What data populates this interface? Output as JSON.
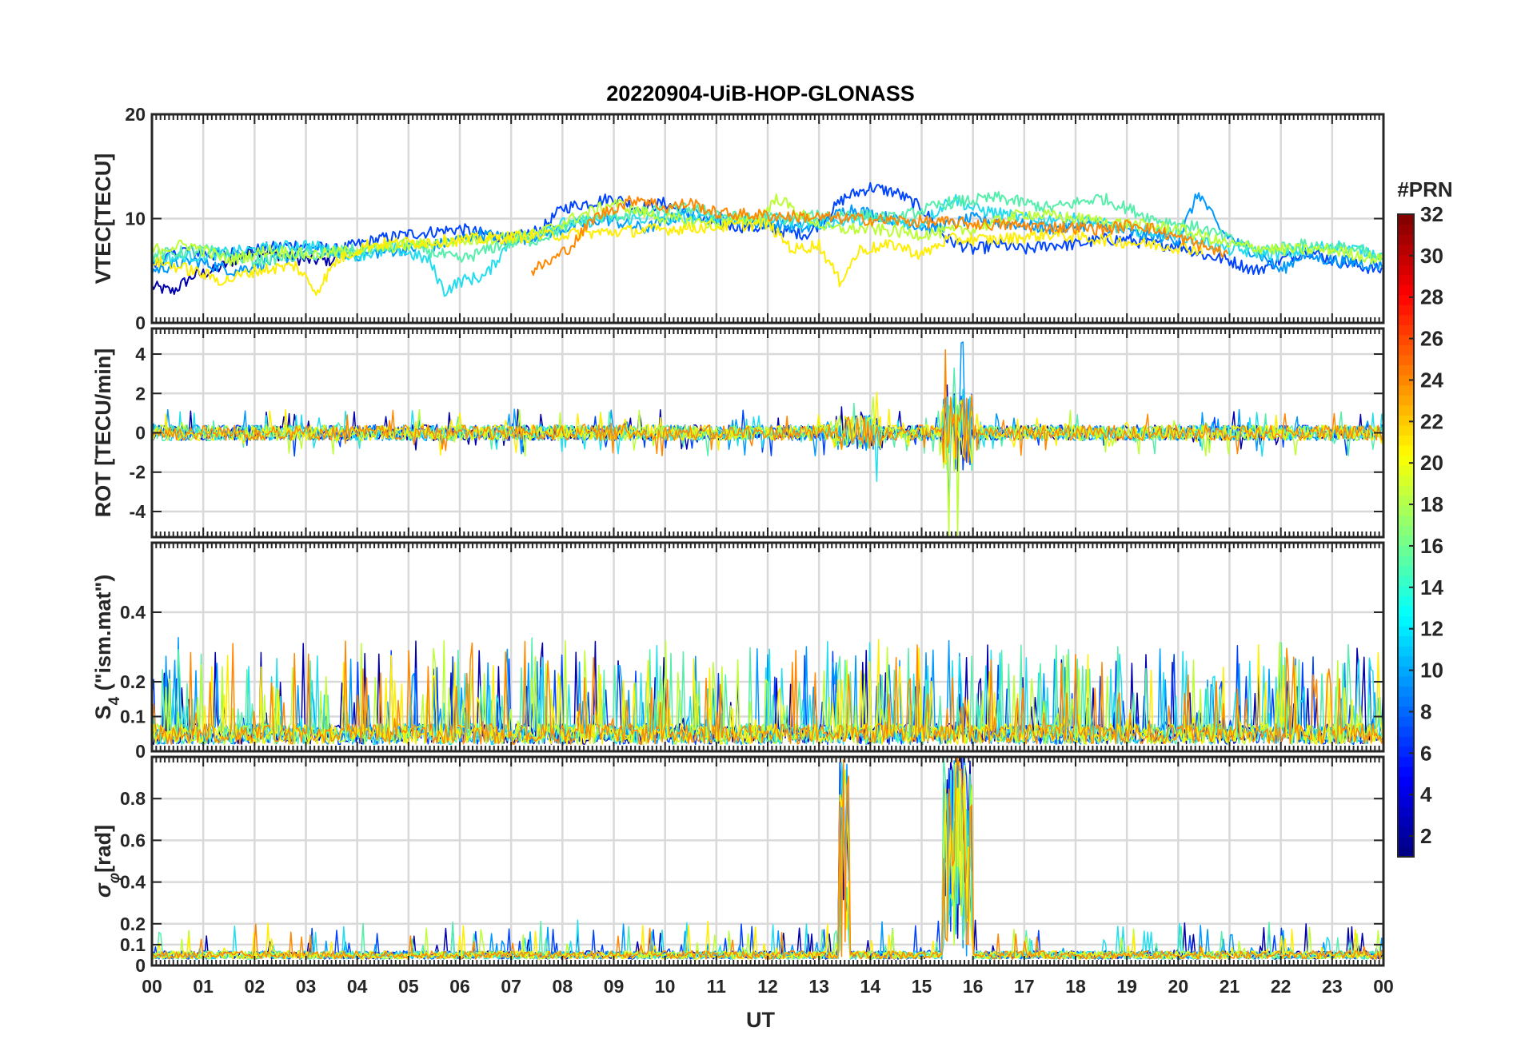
{
  "chart_data": {
    "type": "line",
    "title": "20220904-UiB-HOP-GLONASS",
    "x_axis": {
      "label": "UT",
      "range": [
        0,
        24
      ],
      "tick_labels": [
        "00",
        "01",
        "02",
        "03",
        "04",
        "05",
        "06",
        "07",
        "08",
        "09",
        "10",
        "11",
        "12",
        "13",
        "14",
        "15",
        "16",
        "17",
        "18",
        "19",
        "20",
        "21",
        "22",
        "23",
        "00"
      ]
    },
    "grid": true,
    "colorbar": {
      "title": "#PRN",
      "range": [
        1,
        32
      ],
      "ticks": [
        2,
        4,
        6,
        8,
        10,
        12,
        14,
        16,
        18,
        20,
        22,
        24,
        26,
        28,
        30,
        32
      ],
      "colormap": "jet",
      "placement": "right"
    },
    "panels": [
      {
        "id": "vtec",
        "ylabel": "VTEC[TECU]",
        "ylim": [
          0,
          20
        ],
        "ticks": [
          0,
          10,
          20
        ],
        "series": [
          {
            "prn": 3,
            "color": "#0000b0",
            "values": [
              [
                0,
                3.5
              ],
              [
                0.4,
                3
              ],
              [
                0.8,
                4.5
              ],
              [
                1.2,
                5
              ],
              [
                1.6,
                6
              ],
              [
                2,
                7
              ],
              [
                2.5,
                6.5
              ],
              [
                3,
                6
              ],
              [
                3.6,
                6
              ]
            ]
          },
          {
            "prn": 5,
            "color": "#0044ff",
            "values": [
              [
                0,
                5.5
              ],
              [
                0.6,
                7
              ],
              [
                1.2,
                6.5
              ],
              [
                2,
                7
              ],
              [
                2.8,
                7.5
              ],
              [
                3.6,
                7
              ],
              [
                4.4,
                8
              ],
              [
                5,
                8.5
              ],
              [
                6,
                9
              ],
              [
                7,
                8
              ],
              [
                7.6,
                9
              ],
              [
                8,
                11
              ],
              [
                8.5,
                11.5
              ],
              [
                9,
                12
              ],
              [
                9.5,
                11
              ],
              [
                10,
                11.5
              ],
              [
                10.6,
                10
              ],
              [
                11,
                9.5
              ],
              [
                12,
                9
              ],
              [
                12.8,
                8.5
              ],
              [
                13.5,
                12
              ],
              [
                14,
                13
              ],
              [
                14.5,
                12.5
              ],
              [
                15,
                11
              ],
              [
                15.5,
                8
              ],
              [
                16,
                7
              ],
              [
                16.5,
                7.5
              ],
              [
                17,
                7
              ],
              [
                17.5,
                7.5
              ],
              [
                18,
                7.5
              ],
              [
                18.5,
                8
              ],
              [
                19,
                8
              ],
              [
                19.5,
                7.5
              ],
              [
                20,
                7.5
              ],
              [
                20.5,
                6.5
              ],
              [
                21,
                6
              ],
              [
                21.5,
                5
              ],
              [
                22,
                6
              ],
              [
                22.5,
                7
              ],
              [
                23,
                6
              ],
              [
                24,
                5
              ]
            ]
          },
          {
            "prn": 9,
            "color": "#0099ff",
            "values": [
              [
                0,
                5
              ],
              [
                0.8,
                6
              ],
              [
                1.6,
                5
              ],
              [
                2.4,
                6
              ],
              [
                3.2,
                7
              ],
              [
                4,
                6.5
              ],
              [
                4.8,
                7
              ],
              [
                5.6,
                7.5
              ],
              [
                6.4,
                8.5
              ],
              [
                7.2,
                8
              ],
              [
                8,
                9
              ],
              [
                8.8,
                10
              ],
              [
                9.6,
                9
              ],
              [
                10.4,
                10.5
              ],
              [
                11.2,
                10
              ],
              [
                12,
                9.5
              ],
              [
                12.8,
                9
              ],
              [
                13.6,
                11
              ],
              [
                14.4,
                10
              ],
              [
                15.2,
                9
              ],
              [
                16,
                10
              ],
              [
                16.8,
                9.5
              ],
              [
                17.6,
                9
              ],
              [
                18.4,
                9.5
              ],
              [
                19.2,
                8.5
              ],
              [
                20,
                8
              ],
              [
                20.4,
                12.5
              ],
              [
                20.8,
                9
              ],
              [
                21.2,
                7.5
              ],
              [
                21.6,
                6.5
              ],
              [
                22,
                5
              ],
              [
                22.4,
                6.5
              ],
              [
                23,
                6
              ],
              [
                24,
                5.5
              ]
            ]
          },
          {
            "prn": 12,
            "color": "#22ddee",
            "values": [
              [
                0,
                6
              ],
              [
                1,
                6.5
              ],
              [
                2,
                7
              ],
              [
                3,
                7.5
              ],
              [
                4,
                6.5
              ],
              [
                4.8,
                7
              ],
              [
                5.4,
                6
              ],
              [
                5.7,
                3
              ],
              [
                6,
                4
              ],
              [
                6.5,
                4.5
              ],
              [
                7,
                8
              ],
              [
                8,
                9.5
              ],
              [
                9,
                10
              ],
              [
                10,
                10
              ],
              [
                11,
                10
              ],
              [
                12,
                10
              ],
              [
                13,
                9.5
              ],
              [
                14,
                10
              ],
              [
                15,
                9.5
              ],
              [
                15.6,
                12
              ],
              [
                16,
                11
              ],
              [
                17,
                10
              ],
              [
                18,
                10
              ],
              [
                19,
                9
              ],
              [
                20,
                8.5
              ],
              [
                21,
                7
              ],
              [
                22,
                6.5
              ],
              [
                23,
                7.5
              ],
              [
                24,
                6.5
              ]
            ]
          },
          {
            "prn": 15,
            "color": "#55eeaa",
            "values": [
              [
                0,
                6.5
              ],
              [
                1,
                7
              ],
              [
                2,
                6
              ],
              [
                3,
                6.5
              ],
              [
                4,
                7
              ],
              [
                5,
                7.5
              ],
              [
                6,
                6
              ],
              [
                6.8,
                7.5
              ],
              [
                7.5,
                8
              ],
              [
                8.5,
                10
              ],
              [
                9.5,
                10.5
              ],
              [
                10.5,
                11
              ],
              [
                11.5,
                10
              ],
              [
                12.5,
                10
              ],
              [
                13.5,
                10.5
              ],
              [
                14.5,
                10
              ],
              [
                15.5,
                11.5
              ],
              [
                16.5,
                12
              ],
              [
                17.5,
                11
              ],
              [
                18.5,
                12
              ],
              [
                19.5,
                10
              ],
              [
                20.5,
                9
              ],
              [
                21.5,
                7
              ],
              [
                22.5,
                7.5
              ],
              [
                23.5,
                7
              ],
              [
                24,
                6
              ]
            ]
          },
          {
            "prn": 18,
            "color": "#bbff33",
            "values": [
              [
                0,
                7
              ],
              [
                0.7,
                7.5
              ],
              [
                1.5,
                6
              ],
              [
                2.3,
                7
              ],
              [
                3.1,
                6.5
              ],
              [
                4,
                7
              ],
              [
                7.5,
                8.5
              ],
              [
                8.2,
                10
              ],
              [
                9,
                11.5
              ],
              [
                10,
                10
              ],
              [
                11,
                9.5
              ],
              [
                11.8,
                10
              ],
              [
                12.2,
                12
              ],
              [
                12.6,
                10.5
              ],
              [
                13.2,
                9
              ],
              [
                14,
                9
              ],
              [
                15,
                8.5
              ],
              [
                16,
                9
              ],
              [
                17,
                10.5
              ],
              [
                18,
                10
              ],
              [
                19,
                9.5
              ],
              [
                20,
                9
              ],
              [
                21,
                7.5
              ],
              [
                22,
                7
              ],
              [
                23,
                7
              ],
              [
                24,
                6
              ]
            ]
          },
          {
            "prn": 20,
            "color": "#ffee00",
            "values": [
              [
                0,
                6
              ],
              [
                0.8,
                5
              ],
              [
                1.4,
                4
              ],
              [
                2,
                5
              ],
              [
                2.8,
                5.5
              ],
              [
                3.2,
                3
              ],
              [
                3.6,
                6
              ],
              [
                4.2,
                7.5
              ],
              [
                12,
                9.5
              ],
              [
                12.5,
                7
              ],
              [
                13,
                7.5
              ],
              [
                13.4,
                4
              ],
              [
                13.8,
                7
              ],
              [
                14.5,
                7.5
              ],
              [
                15,
                6.5
              ],
              [
                15.5,
                8
              ],
              [
                16.5,
                8
              ],
              [
                17.5,
                8.5
              ],
              [
                18.5,
                8
              ],
              [
                19.5,
                7.5
              ],
              [
                20.5,
                7
              ]
            ]
          },
          {
            "prn": 23,
            "color": "#ff8800",
            "values": [
              [
                7.4,
                5
              ],
              [
                7.8,
                6
              ],
              [
                8.2,
                7.5
              ],
              [
                8.6,
                10
              ],
              [
                9,
                11
              ],
              [
                9.5,
                12
              ],
              [
                10,
                11
              ],
              [
                10.5,
                11.5
              ],
              [
                11,
                10.5
              ],
              [
                18.6,
                9
              ],
              [
                19.2,
                9.5
              ],
              [
                19.8,
                8.5
              ],
              [
                20.4,
                7.5
              ],
              [
                21,
                6.5
              ]
            ]
          }
        ]
      },
      {
        "id": "rot",
        "ylabel": "ROT [TECU/min]",
        "ylim": [
          -5.3,
          5.3
        ],
        "ticks": [
          -4,
          -2,
          0,
          2,
          4
        ]
      },
      {
        "id": "s4",
        "ylabel": "S4 (\"ism.mat\")",
        "ylabel_parts": [
          "S",
          "4",
          " (\"ism.mat\")"
        ],
        "ylim": [
          0,
          0.6
        ],
        "ticks": [
          0,
          0.1,
          0.2,
          0.4
        ],
        "tick_labels": [
          "0",
          "0.1",
          "0.2",
          "0.4"
        ]
      },
      {
        "id": "sigma",
        "ylabel": "σφ[rad]",
        "ylabel_parts": [
          "σ",
          "φ",
          "[rad]"
        ],
        "ylim": [
          0,
          1
        ],
        "ticks": [
          0,
          0.1,
          0.2,
          0.4,
          0.6,
          0.8
        ],
        "tick_labels": [
          "0",
          "0.1",
          "0.2",
          "0.4",
          "0.6",
          "0.8"
        ]
      }
    ]
  }
}
